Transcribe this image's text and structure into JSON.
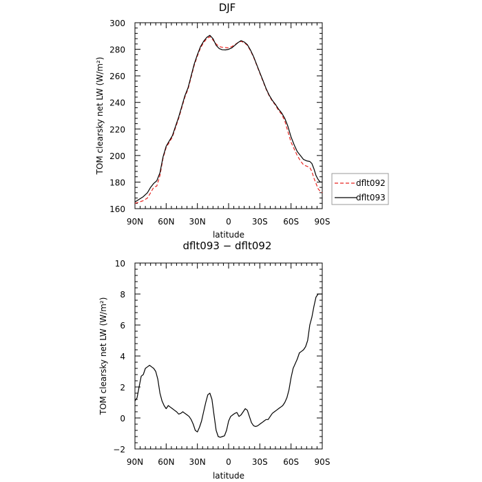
{
  "chart_data": [
    {
      "type": "line",
      "title": "DJF",
      "xlabel": "latitude",
      "ylabel": "TOM clearsky net LW (W/m²)",
      "xlim": [
        90,
        -90
      ],
      "ylim": [
        160,
        300
      ],
      "x_ticks": [
        90,
        60,
        30,
        0,
        -30,
        -60,
        -90
      ],
      "x_tick_labels": [
        "90N",
        "60N",
        "30N",
        "0",
        "30S",
        "60S",
        "90S"
      ],
      "y_ticks": [
        160,
        180,
        200,
        220,
        240,
        260,
        280,
        300
      ],
      "y_tick_labels": [
        "160",
        "180",
        "200",
        "220",
        "240",
        "260",
        "280",
        "300"
      ],
      "grid": false,
      "legend": "outside-right",
      "series": [
        {
          "name": "dflt092",
          "color": "#e8231f",
          "style": "dashed",
          "x": [
            90,
            86,
            82,
            78,
            75,
            72,
            69,
            66,
            63,
            60,
            57,
            54,
            51,
            48,
            45,
            42,
            39,
            36,
            33,
            30,
            27,
            24,
            21,
            18,
            15,
            12,
            9,
            6,
            3,
            0,
            -3,
            -6,
            -9,
            -12,
            -15,
            -18,
            -21,
            -24,
            -27,
            -30,
            -33,
            -36,
            -39,
            -42,
            -45,
            -48,
            -51,
            -54,
            -57,
            -60,
            -63,
            -66,
            -69,
            -72,
            -75,
            -78,
            -80,
            -82,
            -84,
            -86,
            -88,
            -90
          ],
          "y": [
            164,
            165,
            166,
            168,
            172,
            176,
            177,
            185,
            198,
            206,
            210,
            214,
            221,
            228,
            236,
            244,
            250,
            259,
            268,
            275,
            281,
            285,
            288,
            289.5,
            287,
            284,
            282,
            281.5,
            281.3,
            281,
            282,
            283.5,
            285,
            286,
            285,
            283,
            279,
            274,
            268,
            262,
            256,
            250,
            245,
            241,
            238,
            234,
            231,
            226,
            218,
            210,
            205,
            200,
            196,
            193,
            192,
            191,
            188,
            183,
            179,
            175,
            173,
            172
          ]
        },
        {
          "name": "dflt093",
          "color": "#000000",
          "style": "solid",
          "x": [
            90,
            86,
            82,
            78,
            75,
            72,
            69,
            66,
            63,
            60,
            57,
            54,
            51,
            48,
            45,
            42,
            39,
            36,
            33,
            30,
            27,
            24,
            21,
            18,
            15,
            12,
            9,
            6,
            3,
            0,
            -3,
            -6,
            -9,
            -12,
            -15,
            -18,
            -21,
            -24,
            -27,
            -30,
            -33,
            -36,
            -39,
            -42,
            -45,
            -48,
            -51,
            -54,
            -57,
            -60,
            -63,
            -66,
            -69,
            -72,
            -75,
            -78,
            -80,
            -82,
            -84,
            -86,
            -88,
            -90
          ],
          "y": [
            165,
            167,
            169,
            172,
            176,
            179,
            181,
            187,
            199,
            207,
            211,
            215,
            222,
            229,
            237,
            245,
            251,
            260,
            269,
            276,
            282,
            286,
            289,
            290.5,
            288,
            283,
            280.5,
            279.6,
            279.5,
            280,
            281,
            283,
            285,
            286.5,
            285.5,
            283.5,
            279.5,
            274.5,
            268.5,
            262.5,
            256.5,
            250.5,
            245.5,
            241.5,
            238.5,
            235,
            232,
            228,
            222,
            214,
            208,
            203,
            200,
            197,
            196,
            195.5,
            194,
            190,
            185,
            182,
            180,
            180
          ]
        }
      ]
    },
    {
      "type": "line",
      "title": "dflt093 − dflt092",
      "xlabel": "latitude",
      "ylabel": "TOM clearsky net LW (W/m²)",
      "xlim": [
        90,
        -90
      ],
      "ylim": [
        -2,
        10
      ],
      "x_ticks": [
        90,
        60,
        30,
        0,
        -30,
        -60,
        -90
      ],
      "x_tick_labels": [
        "90N",
        "60N",
        "30N",
        "0",
        "30S",
        "60S",
        "90S"
      ],
      "y_ticks": [
        -2,
        0,
        2,
        4,
        6,
        8,
        10
      ],
      "y_tick_labels": [
        "−2",
        "0",
        "2",
        "4",
        "6",
        "8",
        "10"
      ],
      "grid": false,
      "series": [
        {
          "color": "#000000",
          "style": "solid",
          "x": [
            90,
            88,
            86,
            84,
            82,
            80,
            78,
            76,
            74,
            72,
            70,
            68,
            66,
            64,
            62,
            60,
            58,
            56,
            54,
            52,
            50,
            48,
            46,
            44,
            42,
            40,
            38,
            36,
            34,
            32,
            30,
            28,
            26,
            24,
            22,
            20,
            18,
            16,
            14,
            12,
            10,
            8,
            6,
            4,
            2,
            0,
            -2,
            -4,
            -6,
            -8,
            -10,
            -12,
            -14,
            -16,
            -18,
            -20,
            -22,
            -24,
            -26,
            -28,
            -30,
            -32,
            -34,
            -36,
            -38,
            -40,
            -42,
            -44,
            -46,
            -48,
            -50,
            -52,
            -54,
            -56,
            -58,
            -60,
            -62,
            -64,
            -66,
            -68,
            -70,
            -72,
            -74,
            -76,
            -78,
            -80,
            -82,
            -84,
            -86,
            -88,
            -90
          ],
          "y": [
            1.1,
            1.3,
            2.0,
            2.7,
            2.8,
            3.2,
            3.3,
            3.4,
            3.3,
            3.2,
            3.0,
            2.5,
            1.6,
            1.1,
            0.8,
            0.6,
            0.8,
            0.7,
            0.6,
            0.5,
            0.4,
            0.25,
            0.3,
            0.4,
            0.3,
            0.2,
            0.1,
            -0.1,
            -0.4,
            -0.8,
            -0.9,
            -0.6,
            -0.2,
            0.4,
            1.0,
            1.5,
            1.6,
            1.2,
            0.2,
            -0.8,
            -1.2,
            -1.25,
            -1.2,
            -1.15,
            -0.8,
            -0.2,
            0.1,
            0.2,
            0.3,
            0.35,
            0.1,
            0.2,
            0.4,
            0.6,
            0.5,
            0.1,
            -0.3,
            -0.5,
            -0.55,
            -0.5,
            -0.4,
            -0.3,
            -0.2,
            -0.1,
            -0.1,
            0.1,
            0.3,
            0.4,
            0.5,
            0.6,
            0.7,
            0.8,
            1.0,
            1.3,
            1.8,
            2.6,
            3.2,
            3.5,
            3.8,
            4.2,
            4.3,
            4.4,
            4.6,
            5.0,
            6.0,
            6.5,
            7.2,
            7.8,
            8.0,
            8.0,
            8.0
          ]
        }
      ]
    }
  ]
}
